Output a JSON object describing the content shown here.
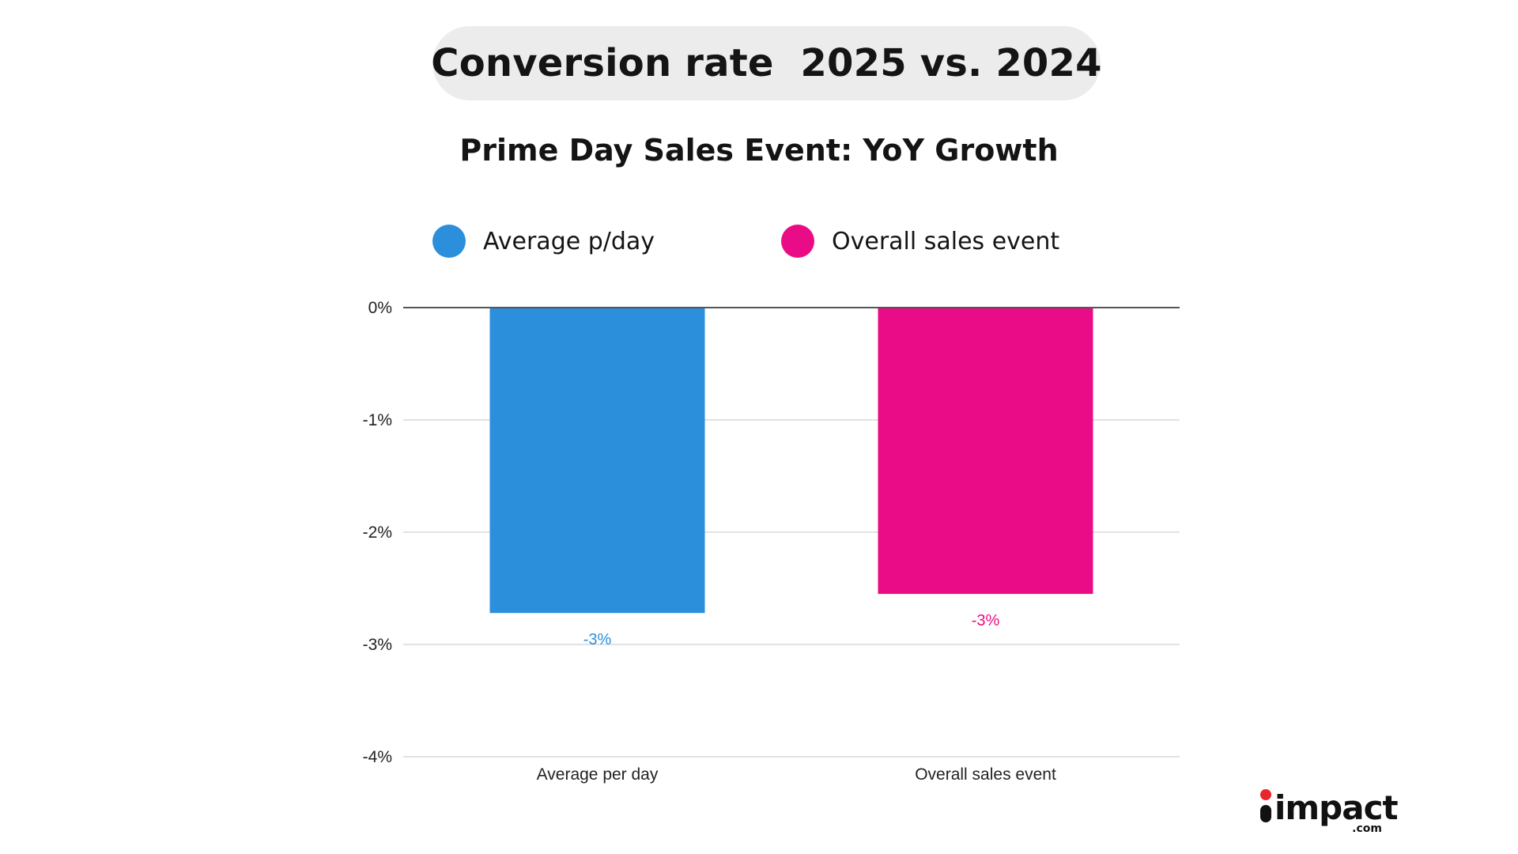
{
  "header": {
    "title": "Conversion rate  2025 vs. 2024"
  },
  "colors": {
    "average": "#2b8fdc",
    "overall": "#ea0b87",
    "grid": "#d9d9d9",
    "zero_line": "#555555",
    "pill": "#ececec"
  },
  "legend": {
    "items": [
      {
        "label": "Average p/day",
        "color": "#2b8fdc"
      },
      {
        "label": "Overall sales event",
        "color": "#ea0b87"
      }
    ]
  },
  "logo": {
    "word": "impact",
    "suffix": ".com",
    "dot_color": "#e8262b"
  },
  "chart_data": {
    "type": "bar",
    "title": "Prime Day Sales Event: YoY Growth",
    "xlabel": "",
    "ylabel": "",
    "categories": [
      "Average per day",
      "Overall sales event"
    ],
    "values": [
      -2.72,
      -2.55
    ],
    "value_labels": [
      "-3%",
      "-3%"
    ],
    "colors": [
      "#2b8fdc",
      "#ea0b87"
    ],
    "ylim": [
      -4,
      0
    ],
    "yticks": [
      0,
      -1,
      -2,
      -3,
      -4
    ],
    "ytick_labels": [
      "0%",
      "-1%",
      "-2%",
      "-3%",
      "-4%"
    ],
    "grid": true,
    "legend_position": "top"
  }
}
